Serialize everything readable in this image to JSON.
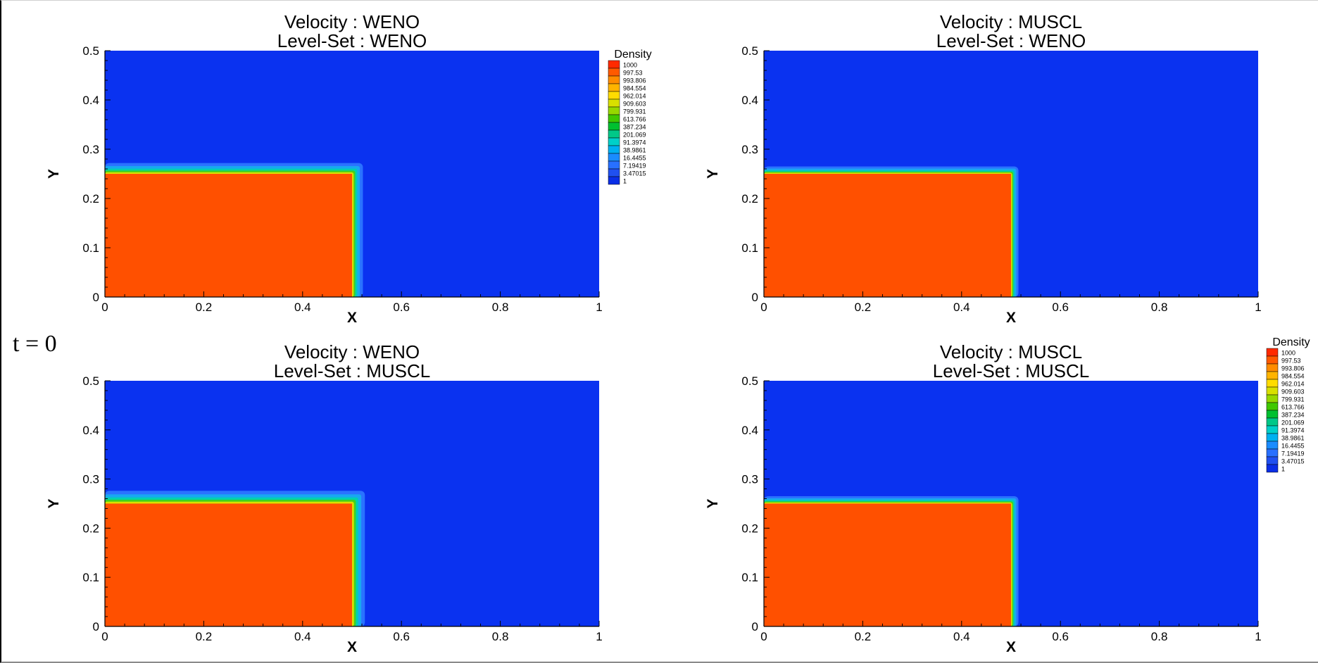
{
  "time_label": "t = 0",
  "colors": {
    "heavy_fluid": "#ff5000",
    "light_fluid": "#0a32f0",
    "axis": "#000000"
  },
  "chart_data": [
    {
      "type": "heatmap",
      "title": "Velocity : WENO",
      "subtitle": "Level-Set : WENO",
      "xlabel": "X",
      "ylabel": "Y",
      "xlim": [
        0,
        1
      ],
      "ylim": [
        0,
        0.5
      ],
      "xticks": [
        "0",
        "0.2",
        "0.4",
        "0.6",
        "0.8",
        "1"
      ],
      "yticks": [
        "0",
        "0.1",
        "0.2",
        "0.3",
        "0.4",
        "0.5"
      ],
      "region": {
        "x": [
          0,
          0.5
        ],
        "y": [
          0,
          0.25
        ],
        "value": 1000
      },
      "background_value": 1,
      "interface_width": 0.022,
      "legend": true,
      "legend_position": "top-right"
    },
    {
      "type": "heatmap",
      "title": "Velocity : MUSCL",
      "subtitle": "Level-Set : WENO",
      "xlabel": "X",
      "ylabel": "Y",
      "xlim": [
        0,
        1
      ],
      "ylim": [
        0,
        0.5
      ],
      "xticks": [
        "0",
        "0.2",
        "0.4",
        "0.6",
        "0.8",
        "1"
      ],
      "yticks": [
        "0",
        "0.1",
        "0.2",
        "0.3",
        "0.4",
        "0.5"
      ],
      "region": {
        "x": [
          0,
          0.5
        ],
        "y": [
          0,
          0.25
        ],
        "value": 1000
      },
      "background_value": 1,
      "interface_width": 0.015,
      "legend": false
    },
    {
      "type": "heatmap",
      "title": "Velocity : WENO",
      "subtitle": "Level-Set : MUSCL",
      "xlabel": "X",
      "ylabel": "Y",
      "xlim": [
        0,
        1
      ],
      "ylim": [
        0,
        0.5
      ],
      "xticks": [
        "0",
        "0.2",
        "0.4",
        "0.6",
        "0.8",
        "1"
      ],
      "yticks": [
        "0",
        "0.1",
        "0.2",
        "0.3",
        "0.4",
        "0.5"
      ],
      "region": {
        "x": [
          0,
          0.5
        ],
        "y": [
          0,
          0.25
        ],
        "value": 1000
      },
      "background_value": 1,
      "interface_width": 0.026,
      "legend": false
    },
    {
      "type": "heatmap",
      "title": "Velocity : MUSCL",
      "subtitle": "Level-Set : MUSCL",
      "xlabel": "X",
      "ylabel": "Y",
      "xlim": [
        0,
        1
      ],
      "ylim": [
        0,
        0.5
      ],
      "xticks": [
        "0",
        "0.2",
        "0.4",
        "0.6",
        "0.8",
        "1"
      ],
      "yticks": [
        "0",
        "0.1",
        "0.2",
        "0.3",
        "0.4",
        "0.5"
      ],
      "region": {
        "x": [
          0,
          0.5
        ],
        "y": [
          0,
          0.25
        ],
        "value": 1000
      },
      "background_value": 1,
      "interface_width": 0.015,
      "legend": true,
      "legend_position": "right"
    }
  ],
  "colorbar": {
    "title": "Density",
    "levels": [
      "1000",
      "997.53",
      "993.806",
      "984.554",
      "962.014",
      "909.603",
      "799.931",
      "613.766",
      "387.234",
      "201.069",
      "91.3974",
      "38.9861",
      "16.4455",
      "7.19419",
      "3.47015",
      "1"
    ],
    "colors": [
      "#ff2a00",
      "#ff5a00",
      "#ff8c00",
      "#ffb400",
      "#ffdc00",
      "#d8e000",
      "#96d800",
      "#40c800",
      "#00c030",
      "#00c888",
      "#00d0c8",
      "#00b0f0",
      "#1a8cff",
      "#2870ff",
      "#2050f0",
      "#0a2ee6"
    ]
  }
}
